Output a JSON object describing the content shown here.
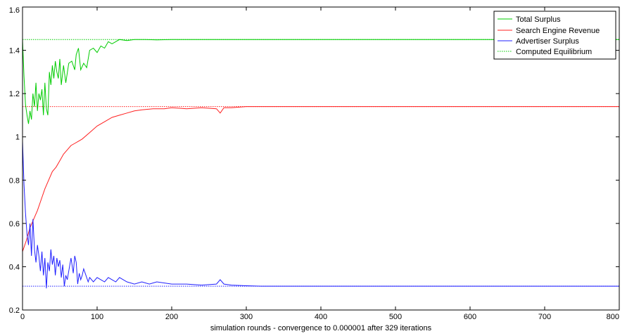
{
  "chart_data": {
    "type": "line",
    "title": "",
    "xlabel": "simulation rounds - convergence to 0.000001 after 329 iterations",
    "ylabel": "",
    "xlim": [
      0,
      800
    ],
    "ylim": [
      0.2,
      1.6
    ],
    "xticks": [
      0,
      100,
      200,
      300,
      400,
      500,
      600,
      700,
      800
    ],
    "yticks": [
      0.2,
      0.4,
      0.6,
      0.8,
      1,
      1.2,
      1.4,
      1.6
    ],
    "xtick_labels": [
      "0",
      "100",
      "200",
      "300",
      "400",
      "500",
      "600",
      "700",
      "800"
    ],
    "ytick_labels": [
      "0.2",
      "0.4",
      "0.6",
      "0.8",
      "1",
      "1.2",
      "1.4",
      "1.6"
    ],
    "grid": false,
    "legend_position": "top-right",
    "series": [
      {
        "name": "Total Surplus",
        "color": "#00cc00",
        "style": "solid",
        "points": [
          [
            0,
            1.45
          ],
          [
            2,
            1.28
          ],
          [
            4,
            1.15
          ],
          [
            6,
            1.1
          ],
          [
            8,
            1.06
          ],
          [
            10,
            1.12
          ],
          [
            12,
            1.08
          ],
          [
            14,
            1.2
          ],
          [
            16,
            1.14
          ],
          [
            18,
            1.25
          ],
          [
            20,
            1.12
          ],
          [
            22,
            1.2
          ],
          [
            24,
            1.17
          ],
          [
            26,
            1.22
          ],
          [
            28,
            1.1
          ],
          [
            30,
            1.25
          ],
          [
            32,
            1.13
          ],
          [
            34,
            1.1
          ],
          [
            36,
            1.3
          ],
          [
            38,
            1.24
          ],
          [
            40,
            1.33
          ],
          [
            42,
            1.27
          ],
          [
            44,
            1.35
          ],
          [
            46,
            1.3
          ],
          [
            48,
            1.27
          ],
          [
            50,
            1.36
          ],
          [
            52,
            1.24
          ],
          [
            55,
            1.33
          ],
          [
            58,
            1.25
          ],
          [
            62,
            1.34
          ],
          [
            66,
            1.35
          ],
          [
            70,
            1.31
          ],
          [
            72,
            1.38
          ],
          [
            75,
            1.41
          ],
          [
            78,
            1.31
          ],
          [
            82,
            1.34
          ],
          [
            86,
            1.32
          ],
          [
            90,
            1.4
          ],
          [
            95,
            1.41
          ],
          [
            100,
            1.39
          ],
          [
            105,
            1.42
          ],
          [
            110,
            1.41
          ],
          [
            115,
            1.44
          ],
          [
            120,
            1.43
          ],
          [
            125,
            1.44
          ],
          [
            130,
            1.45
          ],
          [
            140,
            1.445
          ],
          [
            150,
            1.45
          ],
          [
            165,
            1.45
          ],
          [
            180,
            1.448
          ],
          [
            200,
            1.45
          ],
          [
            800,
            1.45
          ]
        ]
      },
      {
        "name": "Search Engine Revenue",
        "color": "#ff2020",
        "style": "solid",
        "points": [
          [
            0,
            0.47
          ],
          [
            5,
            0.52
          ],
          [
            10,
            0.58
          ],
          [
            15,
            0.62
          ],
          [
            20,
            0.66
          ],
          [
            25,
            0.71
          ],
          [
            30,
            0.76
          ],
          [
            35,
            0.8
          ],
          [
            40,
            0.84
          ],
          [
            45,
            0.86
          ],
          [
            50,
            0.89
          ],
          [
            55,
            0.92
          ],
          [
            60,
            0.94
          ],
          [
            65,
            0.96
          ],
          [
            70,
            0.97
          ],
          [
            75,
            0.98
          ],
          [
            80,
            0.99
          ],
          [
            90,
            1.02
          ],
          [
            100,
            1.05
          ],
          [
            110,
            1.07
          ],
          [
            120,
            1.09
          ],
          [
            130,
            1.1
          ],
          [
            140,
            1.11
          ],
          [
            150,
            1.12
          ],
          [
            160,
            1.125
          ],
          [
            175,
            1.13
          ],
          [
            190,
            1.13
          ],
          [
            200,
            1.135
          ],
          [
            220,
            1.13
          ],
          [
            240,
            1.135
          ],
          [
            260,
            1.13
          ],
          [
            265,
            1.11
          ],
          [
            270,
            1.135
          ],
          [
            280,
            1.135
          ],
          [
            300,
            1.14
          ],
          [
            320,
            1.14
          ],
          [
            800,
            1.14
          ]
        ]
      },
      {
        "name": "Advertiser Surplus",
        "color": "#2020ff",
        "style": "solid",
        "points": [
          [
            0,
            0.98
          ],
          [
            2,
            0.78
          ],
          [
            4,
            0.65
          ],
          [
            6,
            0.55
          ],
          [
            8,
            0.5
          ],
          [
            10,
            0.6
          ],
          [
            12,
            0.45
          ],
          [
            14,
            0.62
          ],
          [
            16,
            0.48
          ],
          [
            18,
            0.42
          ],
          [
            20,
            0.5
          ],
          [
            22,
            0.45
          ],
          [
            24,
            0.38
          ],
          [
            26,
            0.47
          ],
          [
            28,
            0.36
          ],
          [
            30,
            0.44
          ],
          [
            32,
            0.3
          ],
          [
            34,
            0.42
          ],
          [
            36,
            0.38
          ],
          [
            38,
            0.48
          ],
          [
            40,
            0.41
          ],
          [
            42,
            0.45
          ],
          [
            44,
            0.36
          ],
          [
            46,
            0.44
          ],
          [
            48,
            0.4
          ],
          [
            50,
            0.43
          ],
          [
            52,
            0.35
          ],
          [
            54,
            0.41
          ],
          [
            56,
            0.31
          ],
          [
            58,
            0.36
          ],
          [
            60,
            0.34
          ],
          [
            62,
            0.38
          ],
          [
            65,
            0.44
          ],
          [
            68,
            0.37
          ],
          [
            70,
            0.45
          ],
          [
            72,
            0.42
          ],
          [
            74,
            0.32
          ],
          [
            76,
            0.37
          ],
          [
            78,
            0.34
          ],
          [
            80,
            0.36
          ],
          [
            82,
            0.39
          ],
          [
            85,
            0.36
          ],
          [
            88,
            0.33
          ],
          [
            90,
            0.35
          ],
          [
            95,
            0.33
          ],
          [
            100,
            0.35
          ],
          [
            105,
            0.34
          ],
          [
            110,
            0.33
          ],
          [
            115,
            0.35
          ],
          [
            120,
            0.34
          ],
          [
            125,
            0.33
          ],
          [
            130,
            0.35
          ],
          [
            140,
            0.33
          ],
          [
            150,
            0.32
          ],
          [
            160,
            0.33
          ],
          [
            170,
            0.32
          ],
          [
            180,
            0.33
          ],
          [
            200,
            0.32
          ],
          [
            220,
            0.32
          ],
          [
            240,
            0.315
          ],
          [
            260,
            0.32
          ],
          [
            265,
            0.34
          ],
          [
            270,
            0.32
          ],
          [
            280,
            0.315
          ],
          [
            300,
            0.312
          ],
          [
            320,
            0.31
          ],
          [
            800,
            0.31
          ]
        ]
      },
      {
        "name": "Computed Equilibrium",
        "color": "#00cc00",
        "style": "dotted",
        "points": [
          [
            0,
            1.45
          ],
          [
            800,
            1.45
          ]
        ]
      },
      {
        "name": "",
        "color": "#ff2020",
        "style": "dotted",
        "points": [
          [
            0,
            1.14
          ],
          [
            800,
            1.14
          ]
        ]
      },
      {
        "name": "",
        "color": "#2020ff",
        "style": "dotted",
        "points": [
          [
            0,
            0.31
          ],
          [
            800,
            0.31
          ]
        ]
      }
    ]
  }
}
